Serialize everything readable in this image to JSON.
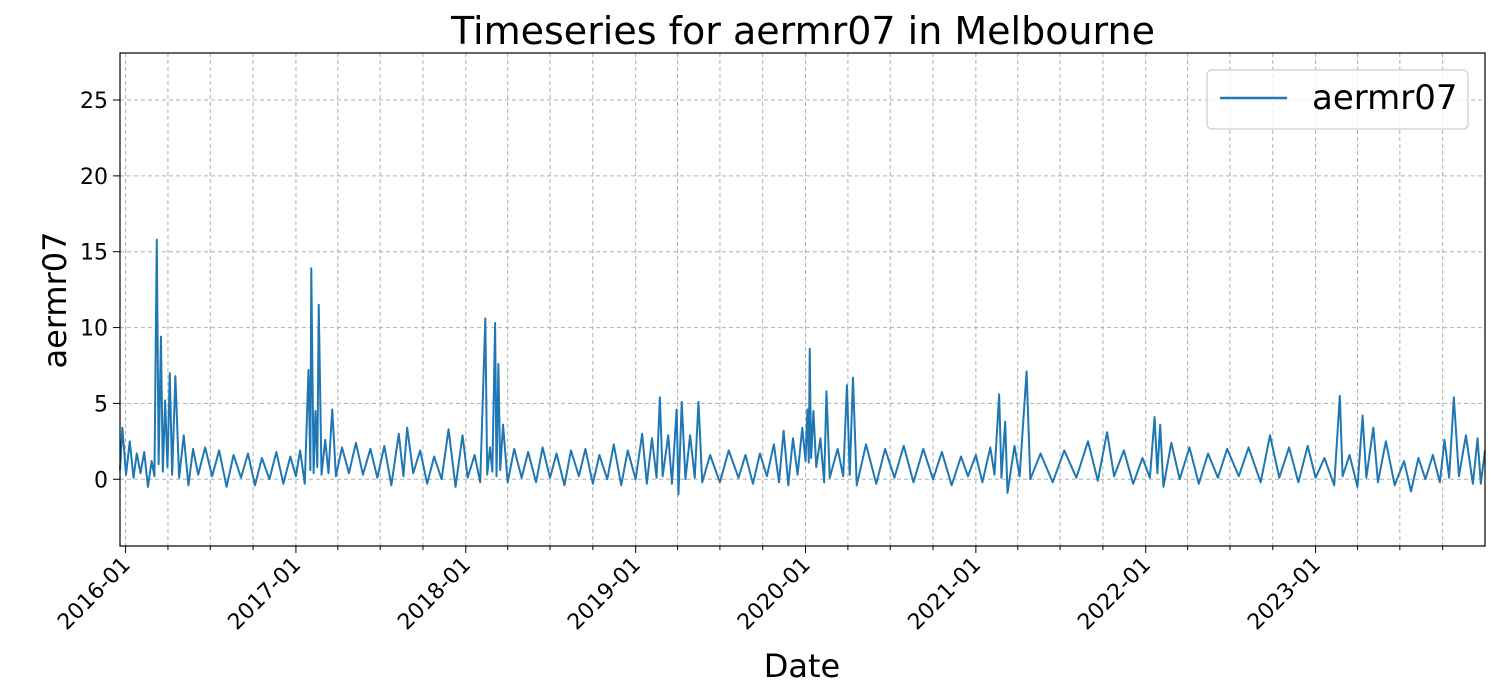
{
  "chart_data": {
    "type": "line",
    "title": "Timeseries for aermr07 in Melbourne",
    "xlabel": "Date",
    "ylabel": "aermr07",
    "xlim": [
      "2015-12-20",
      "2023-12-31"
    ],
    "ylim": [
      -4.4,
      28.1
    ],
    "grid": true,
    "legend_position": "top-right",
    "x_ticks": [
      "2016-01",
      "2017-01",
      "2018-01",
      "2019-01",
      "2020-01",
      "2021-01",
      "2022-01",
      "2023-01"
    ],
    "y_ticks": [
      0,
      5,
      10,
      15,
      20,
      25
    ],
    "series": [
      {
        "name": "aermr07",
        "color": "#1f77b4",
        "points": [
          [
            "2015-12-20",
            0.6
          ],
          [
            "2015-12-25",
            3.4
          ],
          [
            "2016-01-02",
            0.3
          ],
          [
            "2016-01-10",
            2.5
          ],
          [
            "2016-01-18",
            0.1
          ],
          [
            "2016-01-25",
            1.7
          ],
          [
            "2016-02-02",
            0.4
          ],
          [
            "2016-02-10",
            1.8
          ],
          [
            "2016-02-18",
            -0.5
          ],
          [
            "2016-02-26",
            1.2
          ],
          [
            "2016-03-03",
            0.2
          ],
          [
            "2016-03-08",
            15.8
          ],
          [
            "2016-03-12",
            1.0
          ],
          [
            "2016-03-17",
            9.4
          ],
          [
            "2016-03-21",
            0.5
          ],
          [
            "2016-03-26",
            5.2
          ],
          [
            "2016-03-31",
            0.8
          ],
          [
            "2016-04-05",
            7.0
          ],
          [
            "2016-04-10",
            0.3
          ],
          [
            "2016-04-17",
            6.8
          ],
          [
            "2016-04-25",
            0.1
          ],
          [
            "2016-05-05",
            2.9
          ],
          [
            "2016-05-15",
            -0.4
          ],
          [
            "2016-05-25",
            2.0
          ],
          [
            "2016-06-05",
            0.3
          ],
          [
            "2016-06-20",
            2.1
          ],
          [
            "2016-07-05",
            0.2
          ],
          [
            "2016-07-20",
            1.9
          ],
          [
            "2016-08-05",
            -0.5
          ],
          [
            "2016-08-20",
            1.6
          ],
          [
            "2016-09-05",
            0.1
          ],
          [
            "2016-09-20",
            1.7
          ],
          [
            "2016-10-05",
            -0.4
          ],
          [
            "2016-10-20",
            1.4
          ],
          [
            "2016-11-05",
            0.0
          ],
          [
            "2016-11-20",
            1.8
          ],
          [
            "2016-12-05",
            -0.3
          ],
          [
            "2016-12-20",
            1.5
          ],
          [
            "2017-01-01",
            0.2
          ],
          [
            "2017-01-10",
            1.9
          ],
          [
            "2017-01-20",
            -0.3
          ],
          [
            "2017-01-28",
            7.2
          ],
          [
            "2017-02-01",
            0.6
          ],
          [
            "2017-02-03",
            13.9
          ],
          [
            "2017-02-08",
            0.4
          ],
          [
            "2017-02-12",
            4.5
          ],
          [
            "2017-02-16",
            0.8
          ],
          [
            "2017-02-19",
            11.5
          ],
          [
            "2017-02-25",
            0.3
          ],
          [
            "2017-03-05",
            2.6
          ],
          [
            "2017-03-12",
            0.4
          ],
          [
            "2017-03-20",
            4.6
          ],
          [
            "2017-03-28",
            0.2
          ],
          [
            "2017-04-10",
            2.1
          ],
          [
            "2017-04-25",
            0.4
          ],
          [
            "2017-05-10",
            2.4
          ],
          [
            "2017-05-25",
            0.3
          ],
          [
            "2017-06-10",
            2.0
          ],
          [
            "2017-06-25",
            0.1
          ],
          [
            "2017-07-10",
            2.2
          ],
          [
            "2017-07-25",
            -0.4
          ],
          [
            "2017-08-10",
            3.0
          ],
          [
            "2017-08-20",
            0.2
          ],
          [
            "2017-08-28",
            3.4
          ],
          [
            "2017-09-10",
            0.4
          ],
          [
            "2017-09-25",
            1.9
          ],
          [
            "2017-10-10",
            -0.3
          ],
          [
            "2017-10-25",
            1.5
          ],
          [
            "2017-11-10",
            0.0
          ],
          [
            "2017-11-25",
            3.3
          ],
          [
            "2017-12-10",
            -0.5
          ],
          [
            "2017-12-25",
            2.9
          ],
          [
            "2018-01-05",
            0.1
          ],
          [
            "2018-01-20",
            1.6
          ],
          [
            "2018-02-01",
            -0.2
          ],
          [
            "2018-02-12",
            10.6
          ],
          [
            "2018-02-16",
            0.3
          ],
          [
            "2018-02-22",
            2.1
          ],
          [
            "2018-02-27",
            0.5
          ],
          [
            "2018-03-05",
            10.3
          ],
          [
            "2018-03-08",
            0.2
          ],
          [
            "2018-03-12",
            7.6
          ],
          [
            "2018-03-16",
            0.6
          ],
          [
            "2018-03-22",
            3.6
          ],
          [
            "2018-04-01",
            -0.2
          ],
          [
            "2018-04-15",
            2.0
          ],
          [
            "2018-05-01",
            0.1
          ],
          [
            "2018-05-15",
            1.8
          ],
          [
            "2018-06-01",
            -0.2
          ],
          [
            "2018-06-15",
            2.1
          ],
          [
            "2018-07-01",
            0.1
          ],
          [
            "2018-07-15",
            1.7
          ],
          [
            "2018-08-01",
            -0.4
          ],
          [
            "2018-08-15",
            1.9
          ],
          [
            "2018-09-01",
            0.2
          ],
          [
            "2018-09-15",
            2.0
          ],
          [
            "2018-10-01",
            -0.3
          ],
          [
            "2018-10-15",
            1.6
          ],
          [
            "2018-11-01",
            0.0
          ],
          [
            "2018-11-15",
            2.3
          ],
          [
            "2018-12-01",
            -0.4
          ],
          [
            "2018-12-15",
            1.9
          ],
          [
            "2019-01-01",
            0.0
          ],
          [
            "2019-01-15",
            3.0
          ],
          [
            "2019-01-25",
            -0.3
          ],
          [
            "2019-02-05",
            2.7
          ],
          [
            "2019-02-15",
            0.1
          ],
          [
            "2019-02-22",
            5.4
          ],
          [
            "2019-02-28",
            0.2
          ],
          [
            "2019-03-12",
            2.9
          ],
          [
            "2019-03-20",
            -0.3
          ],
          [
            "2019-03-30",
            4.6
          ],
          [
            "2019-04-03",
            -1.0
          ],
          [
            "2019-04-10",
            5.1
          ],
          [
            "2019-04-18",
            0.0
          ],
          [
            "2019-04-28",
            2.9
          ],
          [
            "2019-05-08",
            0.1
          ],
          [
            "2019-05-16",
            5.1
          ],
          [
            "2019-05-24",
            -0.2
          ],
          [
            "2019-06-10",
            1.6
          ],
          [
            "2019-07-01",
            -0.2
          ],
          [
            "2019-07-20",
            1.9
          ],
          [
            "2019-08-10",
            0.1
          ],
          [
            "2019-08-25",
            1.6
          ],
          [
            "2019-09-10",
            -0.3
          ],
          [
            "2019-09-25",
            1.7
          ],
          [
            "2019-10-10",
            0.2
          ],
          [
            "2019-10-25",
            2.3
          ],
          [
            "2019-11-05",
            -0.2
          ],
          [
            "2019-11-15",
            3.2
          ],
          [
            "2019-11-25",
            -0.4
          ],
          [
            "2019-12-05",
            2.7
          ],
          [
            "2019-12-15",
            0.3
          ],
          [
            "2019-12-25",
            3.4
          ],
          [
            "2020-01-01",
            1.2
          ],
          [
            "2020-01-05",
            4.6
          ],
          [
            "2020-01-08",
            1.1
          ],
          [
            "2020-01-10",
            8.6
          ],
          [
            "2020-01-13",
            1.4
          ],
          [
            "2020-01-18",
            4.5
          ],
          [
            "2020-01-24",
            0.8
          ],
          [
            "2020-02-02",
            2.7
          ],
          [
            "2020-02-10",
            -0.2
          ],
          [
            "2020-02-15",
            5.8
          ],
          [
            "2020-02-22",
            0.1
          ],
          [
            "2020-03-10",
            2.0
          ],
          [
            "2020-03-22",
            0.2
          ],
          [
            "2020-03-30",
            6.2
          ],
          [
            "2020-04-05",
            0.3
          ],
          [
            "2020-04-12",
            6.7
          ],
          [
            "2020-04-20",
            -0.4
          ],
          [
            "2020-05-10",
            2.3
          ],
          [
            "2020-06-01",
            -0.3
          ],
          [
            "2020-06-20",
            2.0
          ],
          [
            "2020-07-10",
            0.1
          ],
          [
            "2020-07-30",
            2.2
          ],
          [
            "2020-08-20",
            -0.2
          ],
          [
            "2020-09-10",
            2.0
          ],
          [
            "2020-10-01",
            0.0
          ],
          [
            "2020-10-20",
            1.8
          ],
          [
            "2020-11-10",
            -0.4
          ],
          [
            "2020-11-30",
            1.5
          ],
          [
            "2020-12-15",
            0.2
          ],
          [
            "2021-01-01",
            1.6
          ],
          [
            "2021-01-15",
            -0.2
          ],
          [
            "2021-02-01",
            2.1
          ],
          [
            "2021-02-10",
            0.3
          ],
          [
            "2021-02-20",
            5.6
          ],
          [
            "2021-02-25",
            0.1
          ],
          [
            "2021-03-05",
            3.8
          ],
          [
            "2021-03-10",
            -0.9
          ],
          [
            "2021-03-25",
            2.2
          ],
          [
            "2021-04-05",
            0.2
          ],
          [
            "2021-04-20",
            7.1
          ],
          [
            "2021-04-28",
            0.0
          ],
          [
            "2021-05-20",
            1.7
          ],
          [
            "2021-06-15",
            -0.2
          ],
          [
            "2021-07-10",
            1.9
          ],
          [
            "2021-08-05",
            0.1
          ],
          [
            "2021-08-30",
            2.5
          ],
          [
            "2021-09-20",
            -0.1
          ],
          [
            "2021-10-10",
            3.1
          ],
          [
            "2021-10-25",
            0.2
          ],
          [
            "2021-11-15",
            1.9
          ],
          [
            "2021-12-05",
            -0.3
          ],
          [
            "2021-12-25",
            1.4
          ],
          [
            "2022-01-10",
            0.1
          ],
          [
            "2022-01-20",
            4.1
          ],
          [
            "2022-01-26",
            0.4
          ],
          [
            "2022-02-01",
            3.6
          ],
          [
            "2022-02-08",
            -0.5
          ],
          [
            "2022-02-25",
            2.4
          ],
          [
            "2022-03-15",
            0.0
          ],
          [
            "2022-04-05",
            2.1
          ],
          [
            "2022-04-25",
            -0.3
          ],
          [
            "2022-05-15",
            1.7
          ],
          [
            "2022-06-05",
            0.1
          ],
          [
            "2022-06-25",
            2.0
          ],
          [
            "2022-07-20",
            0.2
          ],
          [
            "2022-08-10",
            2.1
          ],
          [
            "2022-09-05",
            -0.2
          ],
          [
            "2022-09-25",
            2.9
          ],
          [
            "2022-10-15",
            0.1
          ],
          [
            "2022-11-05",
            2.1
          ],
          [
            "2022-11-25",
            -0.2
          ],
          [
            "2022-12-15",
            2.2
          ],
          [
            "2023-01-01",
            0.1
          ],
          [
            "2023-01-20",
            1.4
          ],
          [
            "2023-02-10",
            -0.4
          ],
          [
            "2023-02-22",
            5.5
          ],
          [
            "2023-02-28",
            0.2
          ],
          [
            "2023-03-15",
            1.6
          ],
          [
            "2023-04-01",
            -0.5
          ],
          [
            "2023-04-12",
            4.2
          ],
          [
            "2023-04-20",
            0.1
          ],
          [
            "2023-05-05",
            3.4
          ],
          [
            "2023-05-15",
            -0.2
          ],
          [
            "2023-06-01",
            2.5
          ],
          [
            "2023-06-20",
            -0.4
          ],
          [
            "2023-07-10",
            1.2
          ],
          [
            "2023-07-25",
            -0.8
          ],
          [
            "2023-08-10",
            1.4
          ],
          [
            "2023-08-25",
            0.0
          ],
          [
            "2023-09-10",
            1.6
          ],
          [
            "2023-09-25",
            -0.2
          ],
          [
            "2023-10-05",
            2.6
          ],
          [
            "2023-10-15",
            0.1
          ],
          [
            "2023-10-25",
            5.4
          ],
          [
            "2023-11-05",
            0.2
          ],
          [
            "2023-11-20",
            2.9
          ],
          [
            "2023-12-05",
            -0.3
          ],
          [
            "2023-12-15",
            2.7
          ],
          [
            "2023-12-22",
            -0.3
          ],
          [
            "2023-12-31",
            1.9
          ]
        ]
      }
    ]
  }
}
